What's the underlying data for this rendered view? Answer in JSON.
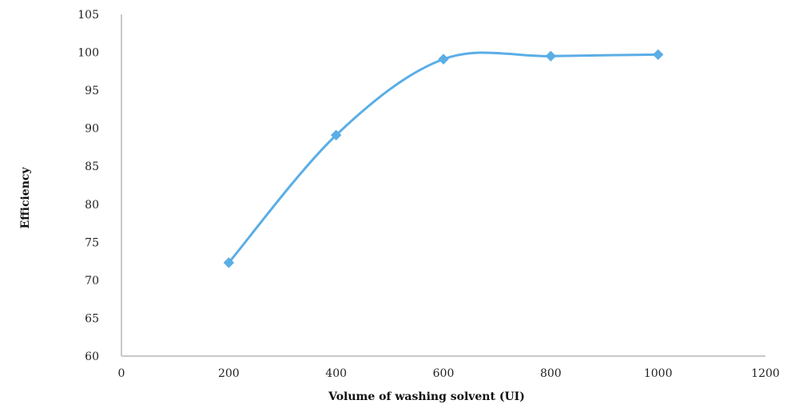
{
  "chart_data": {
    "type": "line",
    "title": "",
    "xlabel": "Volume of washing solvent (UI)",
    "ylabel": "Efficiency",
    "xlim": [
      0,
      1200
    ],
    "ylim": [
      60,
      105
    ],
    "x_ticks": [
      0,
      200,
      400,
      600,
      800,
      1000,
      1200
    ],
    "y_ticks": [
      60,
      65,
      70,
      75,
      80,
      85,
      90,
      95,
      100,
      105
    ],
    "grid": false,
    "legend": "none",
    "smooth": true,
    "series": [
      {
        "x": [
          200,
          400,
          600,
          800,
          1000
        ],
        "y": [
          72.3,
          89.1,
          99.1,
          99.5,
          99.7
        ],
        "color": "#5aaee6",
        "marker": "diamond"
      }
    ],
    "axis_color": "#c8c8c8"
  }
}
